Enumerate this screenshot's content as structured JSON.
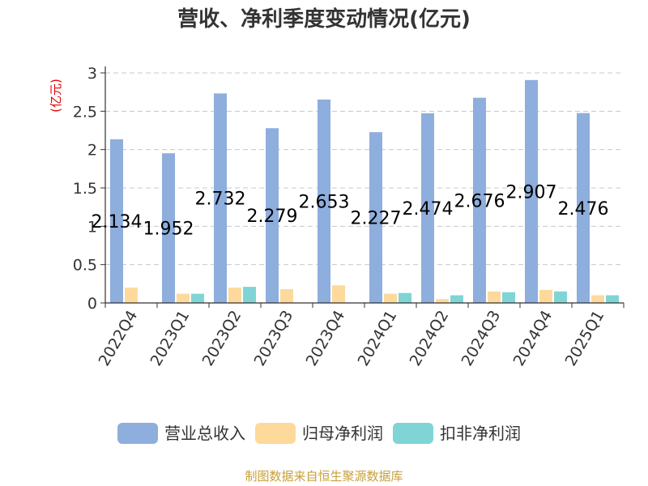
{
  "chart_data": {
    "type": "bar",
    "title": "营收、净利季度变动情况(亿元)",
    "ylabel": "(亿元)",
    "ylim": [
      0,
      3
    ],
    "yticks": [
      "0",
      "0.5",
      "1",
      "1.5",
      "2",
      "2.5",
      "3"
    ],
    "grid": true,
    "legend_position": "bottom",
    "categories": [
      "2022Q4",
      "2023Q1",
      "2023Q2",
      "2023Q3",
      "2023Q4",
      "2024Q1",
      "2024Q2",
      "2024Q3",
      "2024Q4",
      "2025Q1"
    ],
    "series": [
      {
        "name": "营业总收入",
        "color": "#8eaedd",
        "values": [
          2.134,
          1.952,
          2.732,
          2.279,
          2.653,
          2.227,
          2.474,
          2.676,
          2.907,
          2.476
        ],
        "labels": [
          "2.134",
          "1.952",
          "2.732",
          "2.279",
          "2.653",
          "2.227",
          "2.474",
          "2.676",
          "2.907",
          "2.476"
        ]
      },
      {
        "name": "归母净利润",
        "color": "#fdd99b",
        "values": [
          0.2,
          0.12,
          0.2,
          0.18,
          0.23,
          0.12,
          0.05,
          0.15,
          0.17,
          0.1
        ]
      },
      {
        "name": "扣非净利润",
        "color": "#80d4d6",
        "values": [
          0.0,
          0.12,
          0.21,
          0.0,
          0.0,
          0.13,
          0.1,
          0.14,
          0.15,
          0.1
        ]
      }
    ],
    "source": "制图数据来自恒生聚源数据库"
  }
}
